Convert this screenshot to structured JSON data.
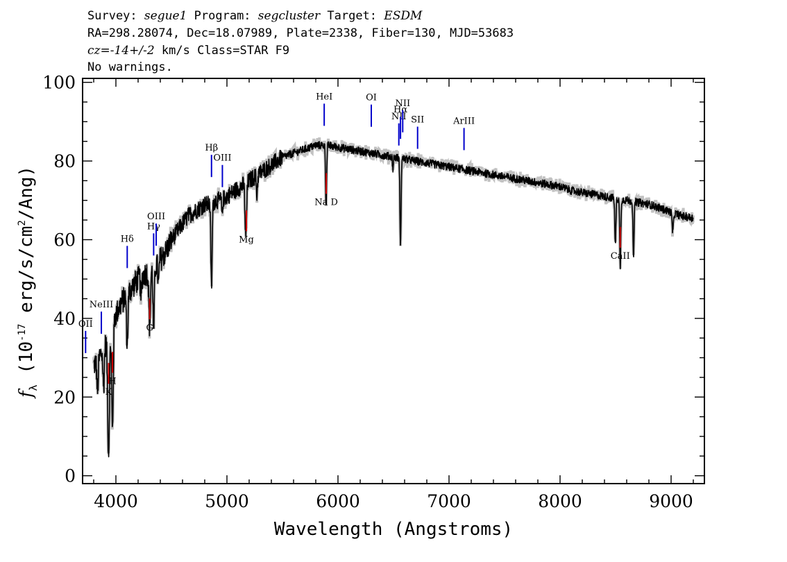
{
  "header": {
    "survey_label": "Survey:",
    "survey": "segue1",
    "program_label": "Program:",
    "program": "segcluster",
    "target_label": "Target:",
    "target": "ESDM",
    "line2": "RA=298.28074, Dec=18.07989, Plate=2338, Fiber=130, MJD=53683",
    "redshift": "cz=-14+/-2",
    "redshift_unit": "km/s",
    "class": "Class=STAR F9",
    "warnings": "No warnings."
  },
  "chart_data": {
    "type": "line",
    "xlabel": "Wavelength (Angstroms)",
    "ylabel": "f_λ (10^-17 erg/s/cm^2/Ang)",
    "xlim": [
      3700,
      9300
    ],
    "ylim": [
      -2,
      101
    ],
    "x_ticks": [
      4000,
      5000,
      6000,
      7000,
      8000,
      9000
    ],
    "y_ticks": [
      0,
      20,
      40,
      60,
      80,
      100
    ],
    "grid": false,
    "colors": {
      "spectrum": "#000000",
      "error": "#bbbbbb",
      "emission": "#0000cc",
      "absorption": "#cc0000"
    },
    "continuum": [
      [
        3800,
        28
      ],
      [
        3850,
        30
      ],
      [
        3900,
        33
      ],
      [
        3950,
        37
      ],
      [
        4000,
        41
      ],
      [
        4050,
        44
      ],
      [
        4100,
        46
      ],
      [
        4150,
        48
      ],
      [
        4200,
        50
      ],
      [
        4250,
        51
      ],
      [
        4300,
        52
      ],
      [
        4350,
        53
      ],
      [
        4400,
        55
      ],
      [
        4450,
        57
      ],
      [
        4500,
        60
      ],
      [
        4550,
        62
      ],
      [
        4600,
        64
      ],
      [
        4650,
        66
      ],
      [
        4700,
        67
      ],
      [
        4750,
        68
      ],
      [
        4800,
        69
      ],
      [
        4850,
        69
      ],
      [
        4900,
        70
      ],
      [
        4950,
        70
      ],
      [
        5000,
        71
      ],
      [
        5050,
        72
      ],
      [
        5100,
        73
      ],
      [
        5150,
        74
      ],
      [
        5200,
        75
      ],
      [
        5300,
        77
      ],
      [
        5400,
        79
      ],
      [
        5500,
        81
      ],
      [
        5600,
        82
      ],
      [
        5700,
        83
      ],
      [
        5800,
        84
      ],
      [
        5900,
        84
      ],
      [
        6000,
        83.5
      ],
      [
        6100,
        83
      ],
      [
        6200,
        82.5
      ],
      [
        6300,
        82
      ],
      [
        6400,
        81.5
      ],
      [
        6500,
        81
      ],
      [
        6600,
        80.5
      ],
      [
        6700,
        80
      ],
      [
        6800,
        79.5
      ],
      [
        6900,
        79
      ],
      [
        7000,
        78.5
      ],
      [
        7100,
        78
      ],
      [
        7200,
        77.5
      ],
      [
        7300,
        77
      ],
      [
        7400,
        76.5
      ],
      [
        7500,
        76
      ],
      [
        7600,
        75.5
      ],
      [
        7700,
        75
      ],
      [
        7800,
        74.5
      ],
      [
        7900,
        74
      ],
      [
        8000,
        73.5
      ],
      [
        8100,
        72.5
      ],
      [
        8200,
        72
      ],
      [
        8300,
        71.5
      ],
      [
        8400,
        71
      ],
      [
        8500,
        70.5
      ],
      [
        8600,
        70
      ],
      [
        8700,
        69.5
      ],
      [
        8800,
        69
      ],
      [
        8900,
        68
      ],
      [
        9000,
        67
      ],
      [
        9100,
        66
      ],
      [
        9200,
        65.5
      ]
    ],
    "absorption_features": [
      {
        "wave": 3835,
        "depth": 8,
        "width": 6
      },
      {
        "wave": 3889,
        "depth": 10,
        "width": 6
      },
      {
        "wave": 3934,
        "depth": 30,
        "width": 8
      },
      {
        "wave": 3969,
        "depth": 27,
        "width": 7
      },
      {
        "wave": 4102,
        "depth": 13,
        "width": 6
      },
      {
        "wave": 4227,
        "depth": 6,
        "width": 5
      },
      {
        "wave": 4304,
        "depth": 14,
        "width": 7
      },
      {
        "wave": 4340,
        "depth": 16,
        "width": 6
      },
      {
        "wave": 4383,
        "depth": 6,
        "width": 5
      },
      {
        "wave": 4861,
        "depth": 21,
        "width": 6
      },
      {
        "wave": 4957,
        "depth": 4,
        "width": 4
      },
      {
        "wave": 5170,
        "depth": 14,
        "width": 7
      },
      {
        "wave": 5270,
        "depth": 5,
        "width": 5
      },
      {
        "wave": 5893,
        "depth": 15,
        "width": 5
      },
      {
        "wave": 6495,
        "depth": 3,
        "width": 4
      },
      {
        "wave": 6563,
        "depth": 23,
        "width": 5
      },
      {
        "wave": 8498,
        "depth": 12,
        "width": 5
      },
      {
        "wave": 8542,
        "depth": 17,
        "width": 5
      },
      {
        "wave": 8662,
        "depth": 14,
        "width": 5
      },
      {
        "wave": 9015,
        "depth": 5,
        "width": 6
      }
    ],
    "emission_lines": [
      {
        "label": "OII",
        "wave": 3727
      },
      {
        "label": "NeIII",
        "wave": 3869
      },
      {
        "label": "Hδ",
        "wave": 4102
      },
      {
        "label": "Hγ",
        "wave": 4340
      },
      {
        "label": "OIII",
        "wave": 4363
      },
      {
        "label": "Hβ",
        "wave": 4861
      },
      {
        "label": "OIII",
        "wave": 4959
      },
      {
        "label": "HeI",
        "wave": 5876
      },
      {
        "label": "OI",
        "wave": 6300
      },
      {
        "label": "NII",
        "wave": 6548
      },
      {
        "label": "Hα",
        "wave": 6563
      },
      {
        "label": "NII",
        "wave": 6583
      },
      {
        "label": "SII",
        "wave": 6717
      },
      {
        "label": "ArIII",
        "wave": 7135
      }
    ],
    "absorption_lines": [
      {
        "label": "K",
        "wave": 3934
      },
      {
        "label": "H",
        "wave": 3969
      },
      {
        "label": "G",
        "wave": 4304
      },
      {
        "label": "Mg",
        "wave": 5175
      },
      {
        "label": "Na D",
        "wave": 5894
      },
      {
        "label": "CaII",
        "wave": 8542
      }
    ]
  }
}
